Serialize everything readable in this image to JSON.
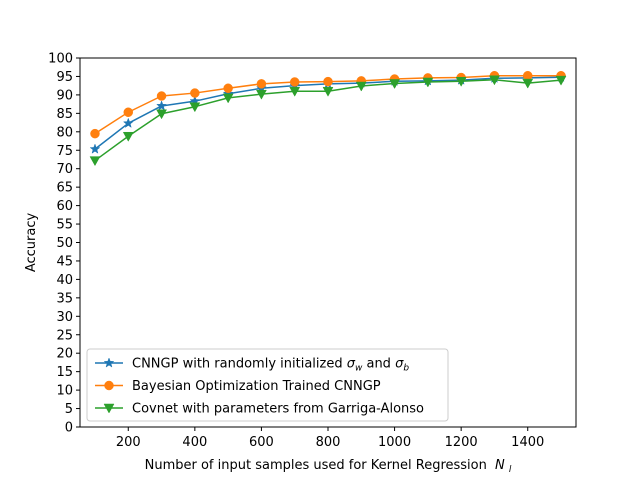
{
  "chart_data": {
    "type": "line",
    "xlabel": "Number of input samples used for Kernel Regression",
    "xlabel_symbol": "N",
    "xlabel_subscript": "l",
    "ylabel": "Accuracy",
    "xlim": [
      55,
      1545
    ],
    "ylim": [
      0,
      100
    ],
    "xticks": [
      200,
      400,
      600,
      800,
      1000,
      1200,
      1400
    ],
    "yticks": [
      0,
      5,
      10,
      15,
      20,
      25,
      30,
      35,
      40,
      45,
      50,
      55,
      60,
      65,
      70,
      75,
      80,
      85,
      90,
      95,
      100
    ],
    "grid": false,
    "legend_location": "lower-left",
    "x": [
      100,
      200,
      300,
      400,
      500,
      600,
      700,
      800,
      900,
      1000,
      1100,
      1200,
      1300,
      1400,
      1500
    ],
    "series": [
      {
        "name": "CNNGP with randomly initialized σ_w and σ_b",
        "label_parts": [
          "CNNGP with randomly initialized ",
          "σ",
          "w",
          " and ",
          "σ",
          "b"
        ],
        "color": "#1f77b4",
        "marker": "star",
        "values": [
          75.3,
          82.3,
          87.0,
          88.3,
          90.3,
          91.8,
          92.5,
          93.0,
          93.2,
          93.7,
          93.8,
          94.0,
          94.5,
          94.6,
          94.8
        ]
      },
      {
        "name": "Bayesian Optimization Trained CNNGP",
        "label_parts": [
          "Bayesian Optimization Trained CNNGP"
        ],
        "color": "#ff7f0e",
        "marker": "circle",
        "values": [
          79.5,
          85.3,
          89.7,
          90.5,
          91.8,
          93.0,
          93.5,
          93.6,
          93.8,
          94.3,
          94.6,
          94.7,
          95.2,
          95.2,
          95.2
        ]
      },
      {
        "name": "Covnet with parameters from Garriga-Alonso",
        "label_parts": [
          "Covnet with parameters from Garriga-Alonso"
        ],
        "color": "#2ca02c",
        "marker": "triangle-down",
        "values": [
          72.2,
          78.8,
          84.9,
          86.8,
          89.2,
          90.2,
          91.0,
          91.0,
          92.4,
          93.1,
          93.5,
          93.7,
          94.1,
          93.2,
          94.0
        ]
      }
    ]
  }
}
